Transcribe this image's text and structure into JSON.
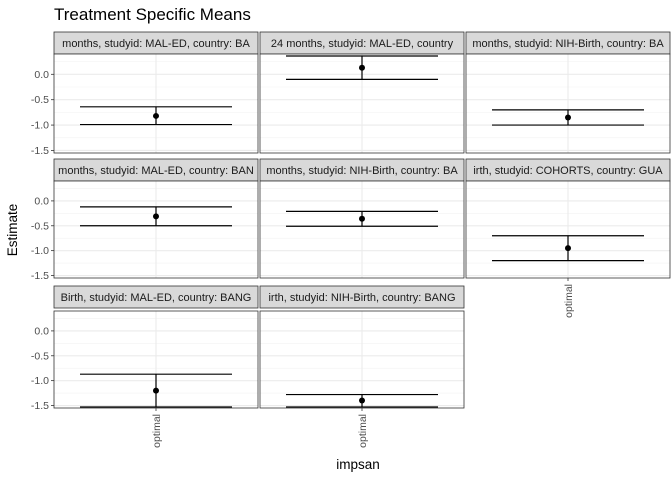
{
  "chart_data": {
    "type": "errorbar",
    "title": "Treatment Specific Means",
    "xlabel": "impsan",
    "ylabel": "Estimate",
    "ylim": [
      -1.55,
      0.4
    ],
    "yticks": [
      0.0,
      -0.5,
      -1.0,
      -1.5
    ],
    "ytick_labels": [
      "0.0",
      "-0.5",
      "-1.0",
      "-1.5"
    ],
    "x_category": "optimal",
    "grid": true,
    "panels": [
      {
        "strip": "months, studyid: MAL-ED, country: BA",
        "estimate": -0.82,
        "lower": -0.99,
        "upper": -0.64
      },
      {
        "strip": "24 months, studyid: MAL-ED, country",
        "estimate": 0.13,
        "lower": -0.1,
        "upper": 0.36
      },
      {
        "strip": "months, studyid: NIH-Birth, country: BA",
        "estimate": -0.85,
        "lower": -1.0,
        "upper": -0.7
      },
      {
        "strip": "months, studyid: MAL-ED, country: BAN",
        "estimate": -0.31,
        "lower": -0.5,
        "upper": -0.12
      },
      {
        "strip": "months, studyid: NIH-Birth, country: BA",
        "estimate": -0.36,
        "lower": -0.51,
        "upper": -0.21
      },
      {
        "strip": "irth, studyid: COHORTS, country: GUA",
        "estimate": -0.95,
        "lower": -1.2,
        "upper": -0.7
      },
      {
        "strip": "Birth, studyid: MAL-ED, country: BANG",
        "estimate": -1.2,
        "lower": -1.53,
        "upper": -0.87
      },
      {
        "strip": "irth, studyid: NIH-Birth, country: BANG",
        "estimate": -1.4,
        "lower": -1.53,
        "upper": -1.28
      }
    ]
  }
}
